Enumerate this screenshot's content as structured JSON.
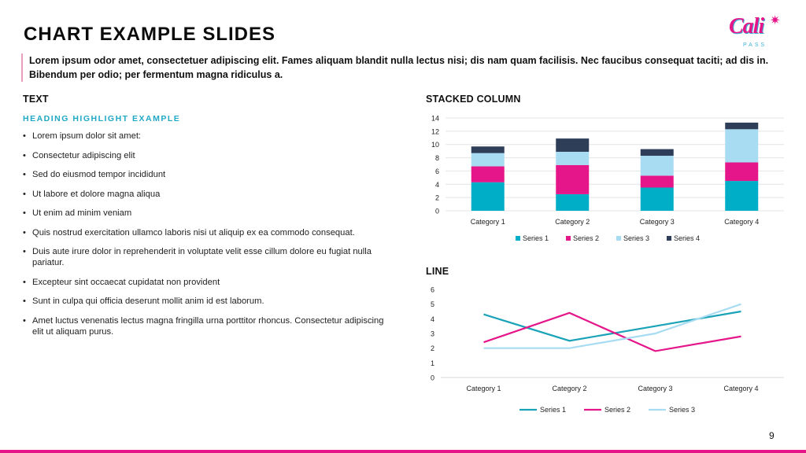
{
  "slide": {
    "title": "CHART EXAMPLE SLIDES",
    "logo": {
      "text": "Cali",
      "sub": "PASS"
    },
    "intro": "Lorem ipsum odor amet, consectetuer adipiscing elit. Fames aliquam blandit nulla lectus nisi; dis nam quam facilisis. Nec faucibus consequat taciti; ad dis in. Bibendum per odio; per fermentum magna ridiculus a.",
    "text_label": "TEXT",
    "highlight": "HEADING HIGHLIGHT EXAMPLE",
    "bullets": [
      "Lorem ipsum dolor sit amet:",
      "Consectetur adipiscing elit",
      "Sed do eiusmod tempor incididunt",
      "Ut labore et dolore magna aliqua",
      "Ut enim ad minim veniam",
      "Quis nostrud exercitation ullamco laboris nisi ut aliquip ex ea commodo consequat.",
      "Duis aute irure dolor in reprehenderit in voluptate velit esse cillum dolore eu fugiat nulla pariatur.",
      "Excepteur sint occaecat cupidatat non provident",
      "Sunt in culpa qui officia deserunt mollit anim id est laborum.",
      "Amet luctus venenatis lectus magna fringilla urna porttitor rhoncus. Consectetur adipiscing elit ut aliquam purus."
    ],
    "page_number": "9",
    "accent_color": "#e5168a"
  },
  "chart_data": [
    {
      "type": "bar",
      "stacked": true,
      "title": "STACKED COLUMN",
      "categories": [
        "Category 1",
        "Category 2",
        "Category 3",
        "Category 4"
      ],
      "series": [
        {
          "name": "Series 1",
          "color": "#00aec7",
          "values": [
            4.3,
            2.5,
            3.5,
            4.5
          ]
        },
        {
          "name": "Series 2",
          "color": "#e5168a",
          "values": [
            2.4,
            4.4,
            1.8,
            2.8
          ]
        },
        {
          "name": "Series 3",
          "color": "#a8dcf2",
          "values": [
            2.0,
            2.0,
            3.0,
            5.0
          ]
        },
        {
          "name": "Series 4",
          "color": "#2e3e58",
          "values": [
            1.0,
            2.0,
            1.0,
            1.0
          ]
        }
      ],
      "ylim": [
        0,
        14
      ],
      "yticks": [
        0,
        2,
        4,
        6,
        8,
        10,
        12,
        14
      ],
      "grid": true,
      "legend": "bottom"
    },
    {
      "type": "line",
      "title": "LINE",
      "categories": [
        "Category 1",
        "Category 2",
        "Category 3",
        "Category 4"
      ],
      "series": [
        {
          "name": "Series 1",
          "color": "#1aa3b8",
          "values": [
            4.3,
            2.5,
            3.5,
            4.5
          ]
        },
        {
          "name": "Series 2",
          "color": "#e5168a",
          "values": [
            2.4,
            4.4,
            1.8,
            2.8
          ]
        },
        {
          "name": "Series 3",
          "color": "#a8dcf2",
          "values": [
            2.0,
            2.0,
            3.0,
            5.0
          ]
        }
      ],
      "ylim": [
        0,
        6
      ],
      "yticks": [
        0,
        1,
        2,
        3,
        4,
        5,
        6
      ],
      "grid": false,
      "legend": "bottom"
    }
  ]
}
